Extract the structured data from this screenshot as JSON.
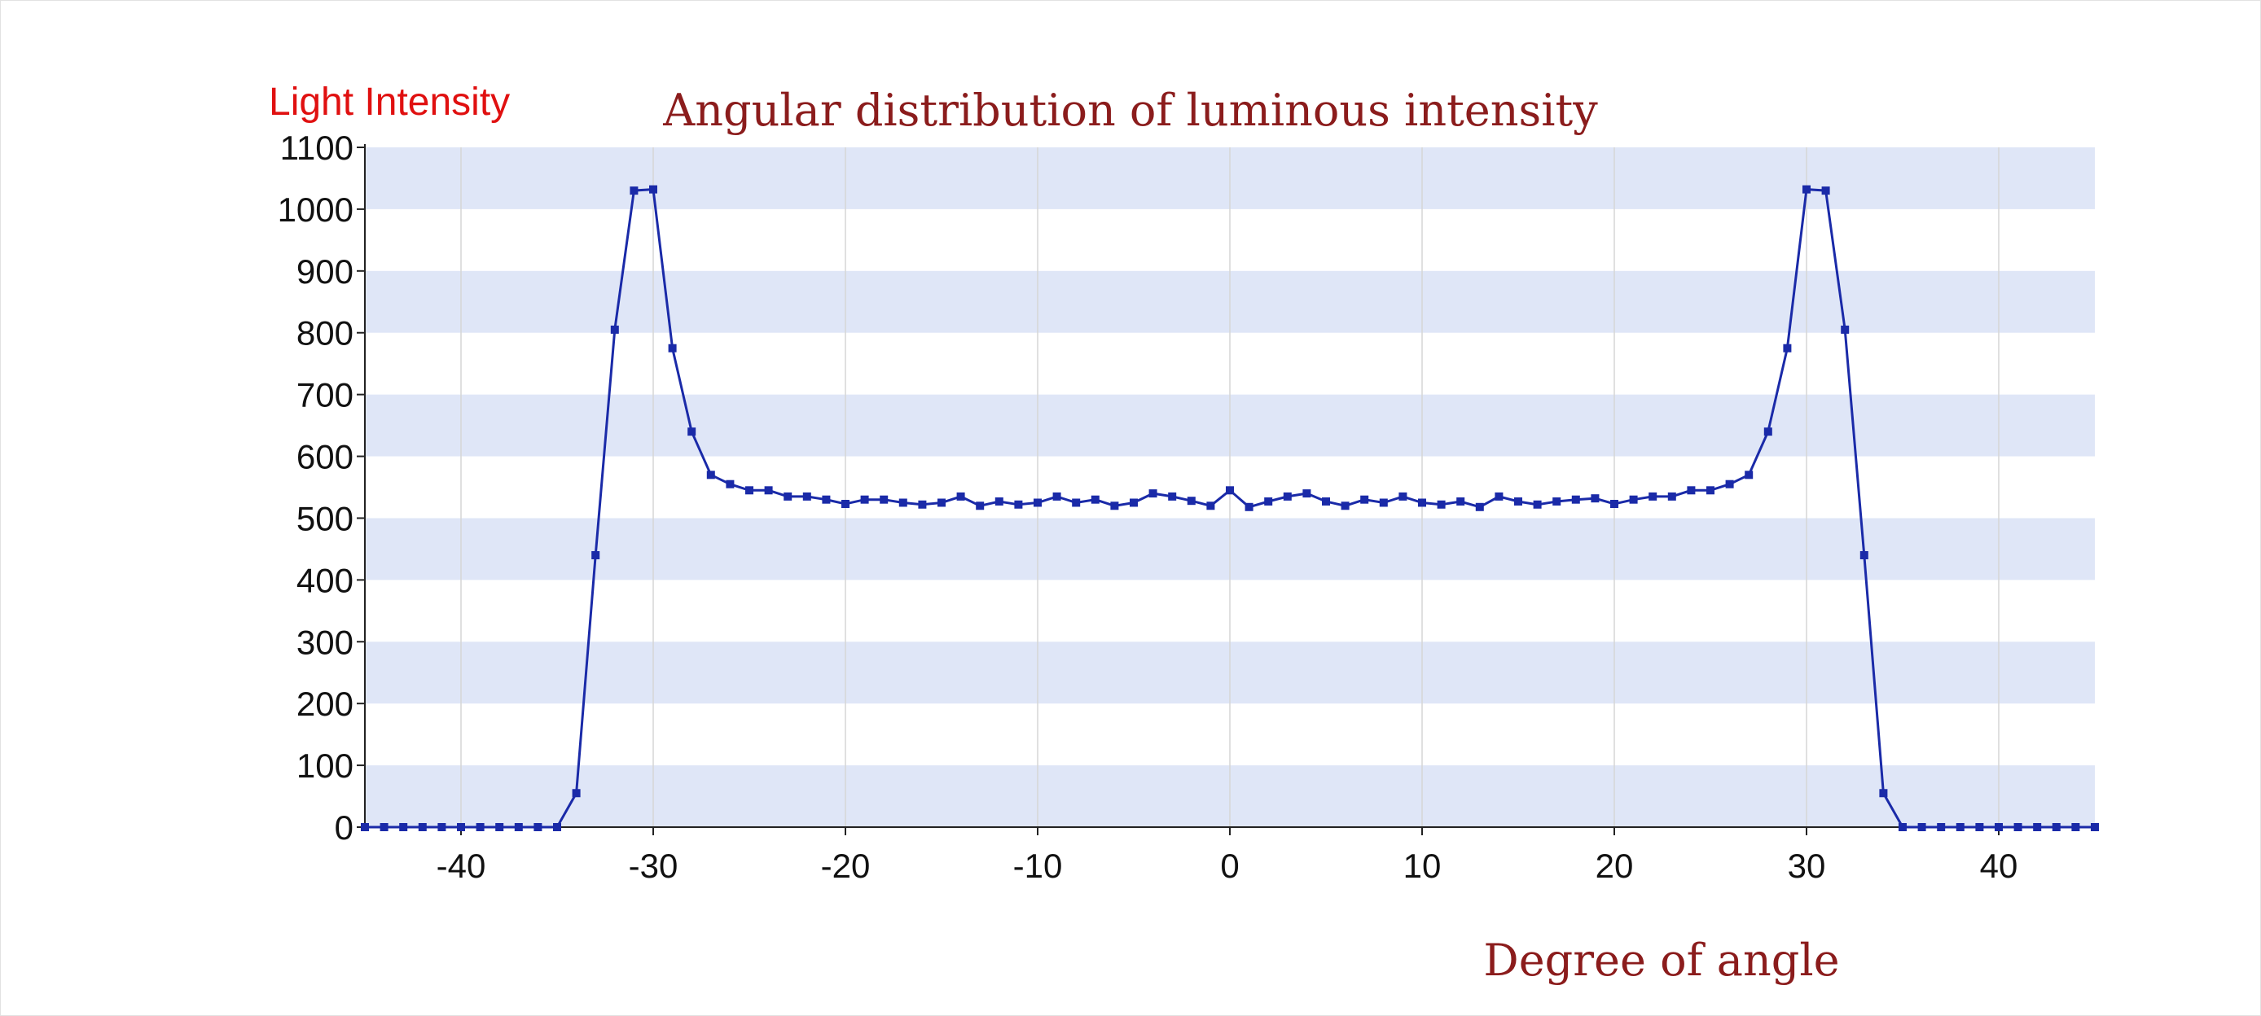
{
  "chart_data": {
    "type": "line",
    "title": "Angular distribution of luminous intensity",
    "ylabel": "Light Intensity",
    "xlabel": "Degree of angle",
    "xlim": [
      -45,
      45
    ],
    "ylim": [
      0,
      1100
    ],
    "xticks": [
      -40,
      -30,
      -20,
      -10,
      0,
      10,
      20,
      30,
      40
    ],
    "yticks": [
      0,
      100,
      200,
      300,
      400,
      500,
      600,
      700,
      800,
      900,
      1000,
      1100
    ],
    "grid": "vertical lines with alternating horizontal bands",
    "series": [
      {
        "color": "#1a2aa8",
        "x": [
          -45,
          -44,
          -43,
          -42,
          -41,
          -40,
          -39,
          -38,
          -37,
          -36,
          -35,
          -34,
          -33,
          -32,
          -31,
          -30,
          -29,
          -28,
          -27,
          -26,
          -25,
          -24,
          -23,
          -22,
          -21,
          -20,
          -19,
          -18,
          -17,
          -16,
          -15,
          -14,
          -13,
          -12,
          -11,
          -10,
          -9,
          -8,
          -7,
          -6,
          -5,
          -4,
          -3,
          -2,
          -1,
          0,
          1,
          2,
          3,
          4,
          5,
          6,
          7,
          8,
          9,
          10,
          11,
          12,
          13,
          14,
          15,
          16,
          17,
          18,
          19,
          20,
          21,
          22,
          23,
          24,
          25,
          26,
          27,
          28,
          29,
          30,
          31,
          32,
          33,
          34,
          35,
          36,
          37,
          38,
          39,
          40,
          41,
          42,
          43,
          44,
          45
        ],
        "y": [
          0,
          0,
          0,
          0,
          0,
          0,
          0,
          0,
          0,
          0,
          0,
          55,
          440,
          805,
          1030,
          1032,
          775,
          640,
          570,
          555,
          545,
          545,
          535,
          535,
          530,
          523,
          530,
          530,
          525,
          522,
          525,
          535,
          520,
          527,
          522,
          525,
          535,
          525,
          530,
          520,
          525,
          540,
          535,
          528,
          520,
          545,
          518,
          527,
          535,
          540,
          527,
          520,
          530,
          525,
          535,
          525,
          522,
          527,
          518,
          535,
          527,
          522,
          527,
          530,
          532,
          523,
          530,
          535,
          535,
          545,
          545,
          555,
          570,
          640,
          775,
          1032,
          1030,
          805,
          440,
          55,
          0,
          0,
          0,
          0,
          0,
          0,
          0,
          0,
          0,
          0,
          0
        ]
      }
    ],
    "colors": {
      "band": "#dfe6f7",
      "line": "#1a2aa8",
      "axis": "#222222",
      "title": "#8b1c1c",
      "ylabel": "#e01010"
    }
  }
}
